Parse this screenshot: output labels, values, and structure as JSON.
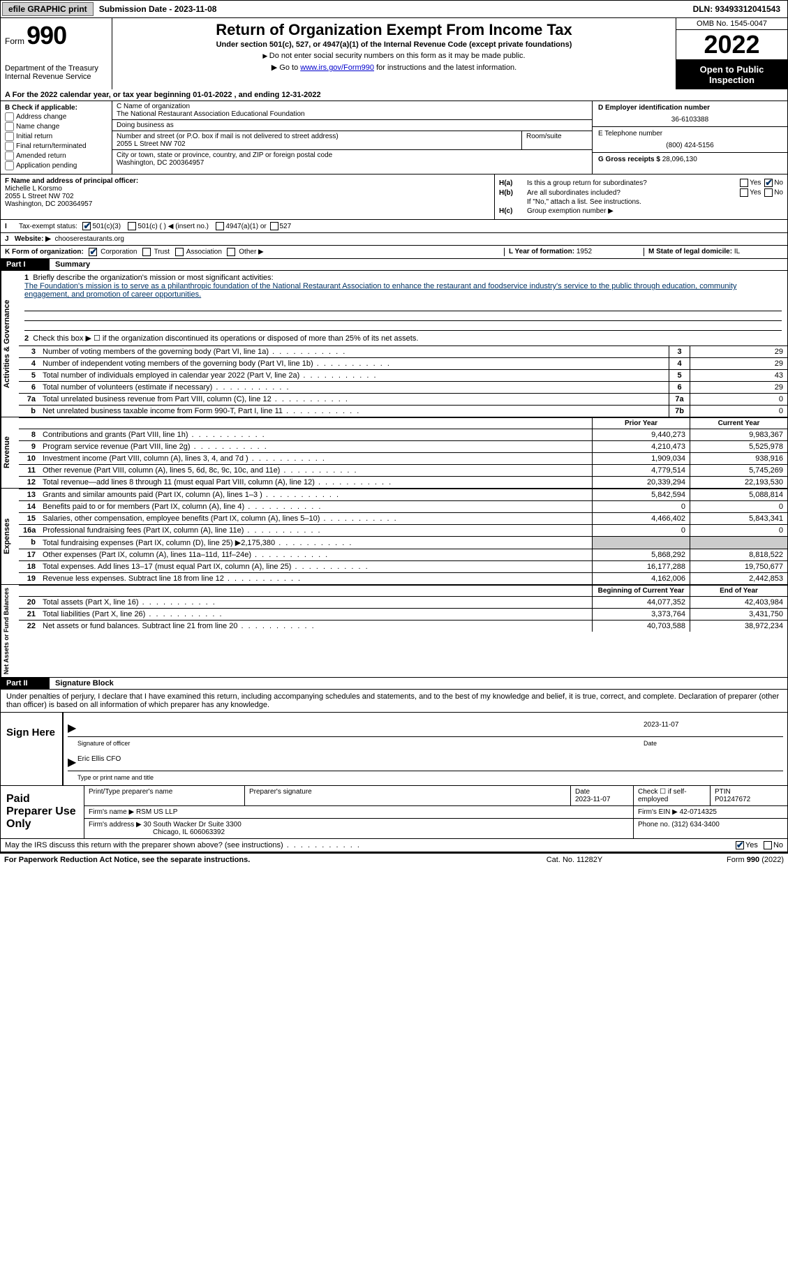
{
  "topbar": {
    "efile_btn": "efile GRAPHIC print",
    "submission_label": "Submission Date - 2023-11-08",
    "dln_label": "DLN: 93493312041543"
  },
  "header": {
    "form_label": "Form",
    "form_number": "990",
    "dept": "Department of the Treasury\nInternal Revenue Service",
    "title": "Return of Organization Exempt From Income Tax",
    "subtitle": "Under section 501(c), 527, or 4947(a)(1) of the Internal Revenue Code (except private foundations)",
    "note1": "Do not enter social security numbers on this form as it may be made public.",
    "note2_pre": "Go to ",
    "note2_link": "www.irs.gov/Form990",
    "note2_post": " for instructions and the latest information.",
    "omb": "OMB No. 1545-0047",
    "year": "2022",
    "open": "Open to Public Inspection"
  },
  "line_a": "For the 2022 calendar year, or tax year beginning 01-01-2022    , and ending 12-31-2022",
  "box_b": {
    "label": "B Check if applicable:",
    "opts": [
      "Address change",
      "Name change",
      "Initial return",
      "Final return/terminated",
      "Amended return",
      "Application pending"
    ]
  },
  "box_c": {
    "name_label": "C Name of organization",
    "name": "The National Restaurant Association Educational Foundation",
    "dba_label": "Doing business as",
    "addr_label": "Number and street (or P.O. box if mail is not delivered to street address)",
    "addr": "2055 L Street NW 702",
    "room_label": "Room/suite",
    "city_label": "City or town, state or province, country, and ZIP or foreign postal code",
    "city": "Washington, DC  200364957"
  },
  "box_d": {
    "label": "D Employer identification number",
    "value": "36-6103388"
  },
  "box_e": {
    "label": "E Telephone number",
    "value": "(800) 424-5156"
  },
  "box_g": {
    "label": "G Gross receipts $",
    "value": "28,096,130"
  },
  "box_f": {
    "label": "F Name and address of principal officer:",
    "name": "Michelle L Korsmo",
    "addr1": "2055 L Street NW 702",
    "addr2": "Washington, DC  200364957"
  },
  "box_h": {
    "ha": "Is this a group return for subordinates?",
    "hb": "Are all subordinates included?",
    "hb_note": "If \"No,\" attach a list. See instructions.",
    "hc": "Group exemption number ▶"
  },
  "row_i": {
    "label": "Tax-exempt status:",
    "opt1": "501(c)(3)",
    "opt2": "501(c) (  ) ◀ (insert no.)",
    "opt3": "4947(a)(1) or",
    "opt4": "527"
  },
  "row_j": {
    "label": "Website: ▶",
    "value": "chooserestaurants.org"
  },
  "row_k": {
    "label": "K Form of organization:",
    "opts": [
      "Corporation",
      "Trust",
      "Association",
      "Other ▶"
    ],
    "l_label": "L Year of formation:",
    "l_val": "1952",
    "m_label": "M State of legal domicile:",
    "m_val": "IL"
  },
  "part1": {
    "num": "Part I",
    "title": "Summary"
  },
  "mission": {
    "label": "Briefly describe the organization's mission or most significant activities:",
    "text": "The Foundation's mission is to serve as a philanthropic foundation of the National Restaurant Association to enhance the restaurant and foodservice industry's service to the public through education, community engagement, and promotion of career opportunities."
  },
  "line2": "Check this box ▶ ☐ if the organization discontinued its operations or disposed of more than 25% of its net assets.",
  "lines_ag": [
    {
      "n": "3",
      "t": "Number of voting members of the governing body (Part VI, line 1a)",
      "b": "3",
      "v": "29"
    },
    {
      "n": "4",
      "t": "Number of independent voting members of the governing body (Part VI, line 1b)",
      "b": "4",
      "v": "29"
    },
    {
      "n": "5",
      "t": "Total number of individuals employed in calendar year 2022 (Part V, line 2a)",
      "b": "5",
      "v": "43"
    },
    {
      "n": "6",
      "t": "Total number of volunteers (estimate if necessary)",
      "b": "6",
      "v": "29"
    },
    {
      "n": "7a",
      "t": "Total unrelated business revenue from Part VIII, column (C), line 12",
      "b": "7a",
      "v": "0"
    },
    {
      "n": "b",
      "t": "Net unrelated business taxable income from Form 990-T, Part I, line 11",
      "b": "7b",
      "v": "0"
    }
  ],
  "rev_hdr": {
    "py": "Prior Year",
    "cy": "Current Year"
  },
  "lines_rev": [
    {
      "n": "8",
      "t": "Contributions and grants (Part VIII, line 1h)",
      "py": "9,440,273",
      "cy": "9,983,367"
    },
    {
      "n": "9",
      "t": "Program service revenue (Part VIII, line 2g)",
      "py": "4,210,473",
      "cy": "5,525,978"
    },
    {
      "n": "10",
      "t": "Investment income (Part VIII, column (A), lines 3, 4, and 7d )",
      "py": "1,909,034",
      "cy": "938,916"
    },
    {
      "n": "11",
      "t": "Other revenue (Part VIII, column (A), lines 5, 6d, 8c, 9c, 10c, and 11e)",
      "py": "4,779,514",
      "cy": "5,745,269"
    },
    {
      "n": "12",
      "t": "Total revenue—add lines 8 through 11 (must equal Part VIII, column (A), line 12)",
      "py": "20,339,294",
      "cy": "22,193,530"
    }
  ],
  "lines_exp": [
    {
      "n": "13",
      "t": "Grants and similar amounts paid (Part IX, column (A), lines 1–3 )",
      "py": "5,842,594",
      "cy": "5,088,814"
    },
    {
      "n": "14",
      "t": "Benefits paid to or for members (Part IX, column (A), line 4)",
      "py": "0",
      "cy": "0"
    },
    {
      "n": "15",
      "t": "Salaries, other compensation, employee benefits (Part IX, column (A), lines 5–10)",
      "py": "4,466,402",
      "cy": "5,843,341"
    },
    {
      "n": "16a",
      "t": "Professional fundraising fees (Part IX, column (A), line 11e)",
      "py": "0",
      "cy": "0"
    },
    {
      "n": "b",
      "t": "Total fundraising expenses (Part IX, column (D), line 25) ▶2,175,380",
      "py": "",
      "cy": "",
      "shaded": true
    },
    {
      "n": "17",
      "t": "Other expenses (Part IX, column (A), lines 11a–11d, 11f–24e)",
      "py": "5,868,292",
      "cy": "8,818,522"
    },
    {
      "n": "18",
      "t": "Total expenses. Add lines 13–17 (must equal Part IX, column (A), line 25)",
      "py": "16,177,288",
      "cy": "19,750,677"
    },
    {
      "n": "19",
      "t": "Revenue less expenses. Subtract line 18 from line 12",
      "py": "4,162,006",
      "cy": "2,442,853"
    }
  ],
  "na_hdr": {
    "py": "Beginning of Current Year",
    "cy": "End of Year"
  },
  "lines_na": [
    {
      "n": "20",
      "t": "Total assets (Part X, line 16)",
      "py": "44,077,352",
      "cy": "42,403,984"
    },
    {
      "n": "21",
      "t": "Total liabilities (Part X, line 26)",
      "py": "3,373,764",
      "cy": "3,431,750"
    },
    {
      "n": "22",
      "t": "Net assets or fund balances. Subtract line 21 from line 20",
      "py": "40,703,588",
      "cy": "38,972,234"
    }
  ],
  "part2": {
    "num": "Part II",
    "title": "Signature Block"
  },
  "sig_intro": "Under penalties of perjury, I declare that I have examined this return, including accompanying schedules and statements, and to the best of my knowledge and belief, it is true, correct, and complete. Declaration of preparer (other than officer) is based on all information of which preparer has any knowledge.",
  "sign_here": "Sign Here",
  "sig": {
    "date": "2023-11-07",
    "sig_label": "Signature of officer",
    "date_label": "Date",
    "name": "Eric Ellis CFO",
    "name_label": "Type or print name and title"
  },
  "paid_prep": "Paid Preparer Use Only",
  "prep": {
    "h1": "Print/Type preparer's name",
    "h2": "Preparer's signature",
    "h3_label": "Date",
    "h3": "2023-11-07",
    "h4": "Check ☐ if self-employed",
    "h5_label": "PTIN",
    "h5": "P01247672",
    "firm_label": "Firm's name    ▶",
    "firm": "RSM US LLP",
    "ein_label": "Firm's EIN ▶",
    "ein": "42-0714325",
    "addr_label": "Firm's address ▶",
    "addr1": "30 South Wacker Dr Suite 3300",
    "addr2": "Chicago, IL  606063392",
    "phone_label": "Phone no.",
    "phone": "(312) 634-3400"
  },
  "discuss": "May the IRS discuss this return with the preparer shown above? (see instructions)",
  "footer": {
    "left": "For Paperwork Reduction Act Notice, see the separate instructions.",
    "mid": "Cat. No. 11282Y",
    "right": "Form 990 (2022)"
  },
  "vtabs": {
    "ag": "Activities & Governance",
    "rev": "Revenue",
    "exp": "Expenses",
    "na": "Net Assets or Fund Balances"
  }
}
